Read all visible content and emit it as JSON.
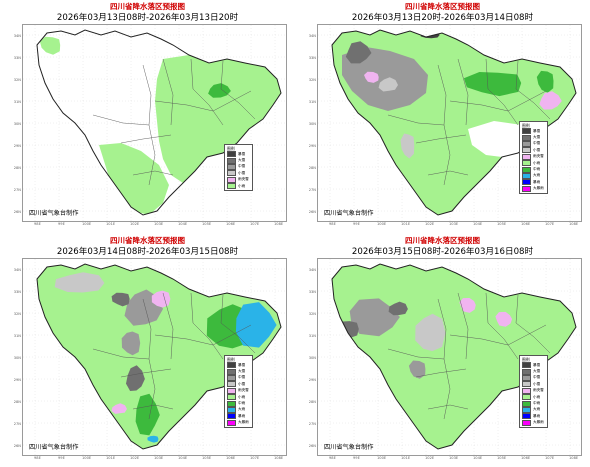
{
  "panels": [
    {
      "title": "四川省降水落区预报图",
      "date": "2026年03月13日08时-2026年03月13日20时",
      "footer": "四川省气象台制作",
      "legend_count": 6
    },
    {
      "title": "四川省降水落区预报图",
      "date": "2026年03月13日20时-2026年03月14日08时",
      "footer": "四川省气象台制作",
      "legend_count": 10
    },
    {
      "title": "四川省降水落区预报图",
      "date": "2026年03月14日08时-2026年03月15日08时",
      "footer": "四川省气象台制作",
      "legend_count": 10
    },
    {
      "title": "四川省降水落区预报图",
      "date": "2026年03月15日08时-2026年03月16日08时",
      "footer": "四川省气象台制作",
      "legend_count": 10
    }
  ],
  "legend": {
    "title": "图例",
    "items": [
      {
        "label": "暴雪",
        "color": "#404040"
      },
      {
        "label": "大雪",
        "color": "#707070"
      },
      {
        "label": "中雪",
        "color": "#9a9a9a"
      },
      {
        "label": "小雪",
        "color": "#c8c8c8"
      },
      {
        "label": "雨夹雪",
        "color": "#f0b4f0"
      },
      {
        "label": "小雨",
        "color": "#a6f28f"
      },
      {
        "label": "中雨",
        "color": "#3dba3d"
      },
      {
        "label": "大雨",
        "color": "#2ab3e8"
      },
      {
        "label": "暴雨",
        "color": "#0000fe"
      },
      {
        "label": "大暴雨",
        "color": "#fa00fa"
      }
    ]
  },
  "lat_ticks": [
    "34N",
    "33N",
    "32N",
    "31N",
    "30N",
    "29N",
    "28N",
    "27N",
    "26N"
  ],
  "lon_ticks": [
    "98E",
    "99E",
    "100E",
    "101E",
    "102E",
    "103E",
    "104E",
    "105E",
    "106E",
    "107E",
    "108E"
  ]
}
